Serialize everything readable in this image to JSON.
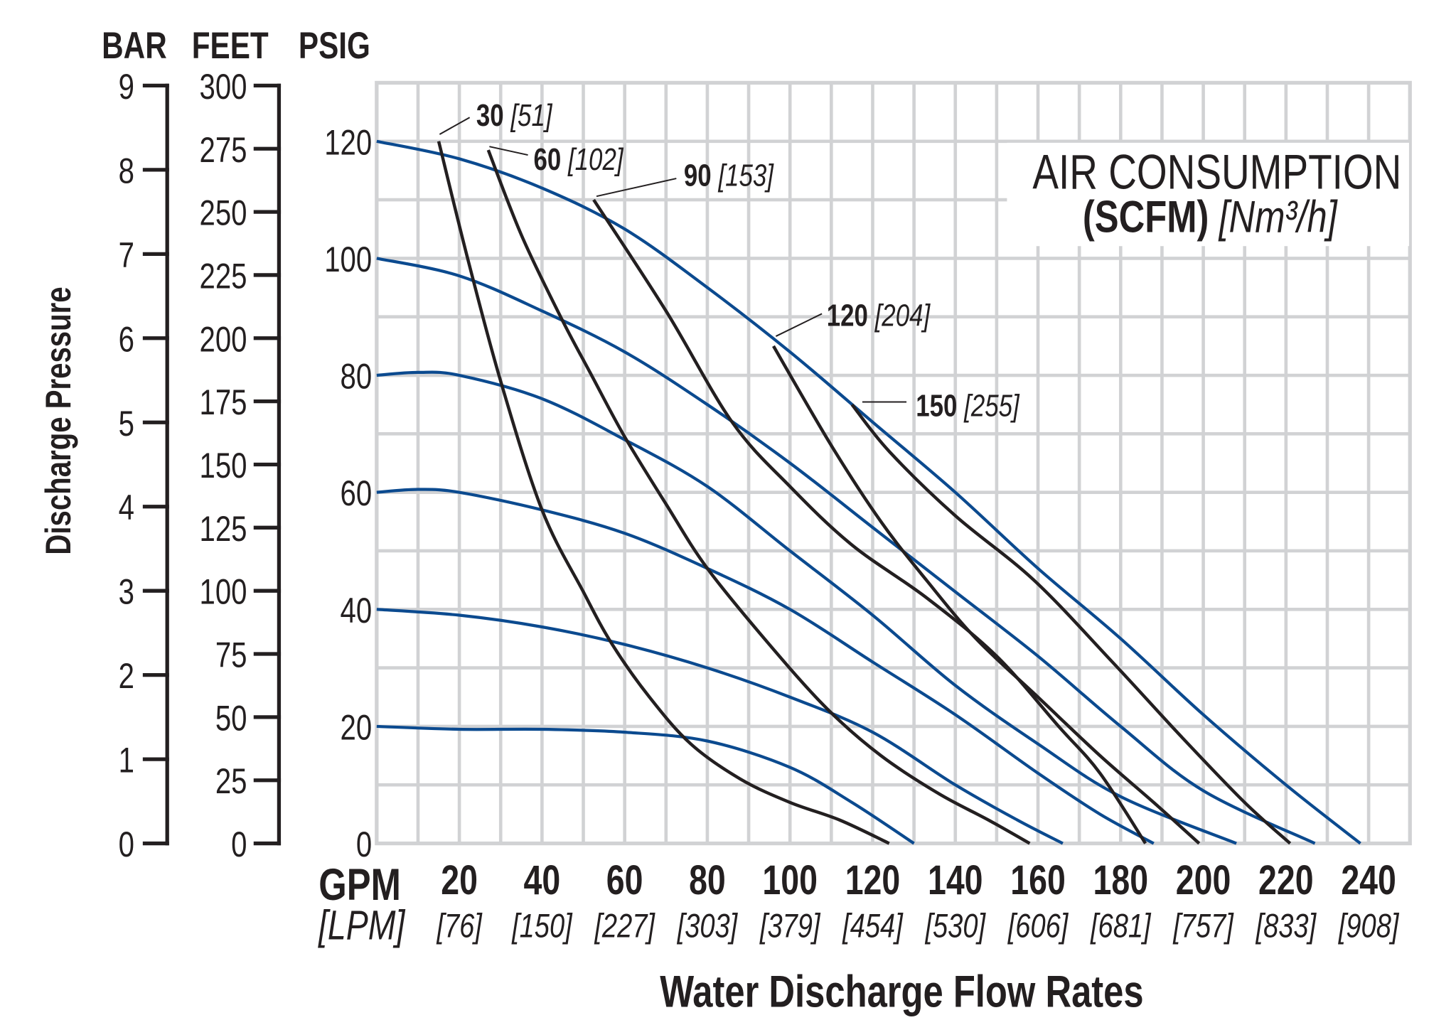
{
  "chart_data": {
    "type": "line",
    "title_box": {
      "line1": "AIR CONSUMPTION",
      "line2_bold": "(SCFM)",
      "line2_italic": "[Nm³/h]"
    },
    "xlabel": "Water Discharge Flow Rates",
    "x_unit_primary": "GPM",
    "x_unit_secondary": "[LPM]",
    "xlim": [
      0,
      250
    ],
    "x_ticks": [
      20,
      40,
      60,
      80,
      100,
      120,
      140,
      160,
      180,
      200,
      220,
      240
    ],
    "x_ticks_secondary": [
      "[76]",
      "[150]",
      "[227]",
      "[303]",
      "[379]",
      "[454]",
      "[530]",
      "[606]",
      "[681]",
      "[757]",
      "[833]",
      "[908]"
    ],
    "ylabel": "Discharge Pressure",
    "ylim": [
      0,
      130
    ],
    "y_axes": [
      {
        "unit": "BAR",
        "max": 9,
        "ticks": [
          0,
          1,
          2,
          3,
          4,
          5,
          6,
          7,
          8,
          9
        ]
      },
      {
        "unit": "FEET",
        "max": 300,
        "ticks": [
          0,
          25,
          50,
          75,
          100,
          125,
          150,
          175,
          200,
          225,
          250,
          275,
          300
        ]
      },
      {
        "unit": "PSIG",
        "ticks": [
          0,
          20,
          40,
          60,
          80,
          100,
          120
        ]
      }
    ],
    "grid": true,
    "colors": {
      "pressure_curves": "#0b4a8f",
      "air_curves": "#231f20",
      "grid": "#d1d2d4"
    },
    "pressure_curves": [
      {
        "start_psig": 120,
        "points": [
          [
            0,
            120
          ],
          [
            20,
            117
          ],
          [
            40,
            112
          ],
          [
            60,
            105
          ],
          [
            80,
            95
          ],
          [
            100,
            84
          ],
          [
            120,
            72
          ],
          [
            140,
            60
          ],
          [
            160,
            47
          ],
          [
            180,
            35
          ],
          [
            200,
            22
          ],
          [
            220,
            10
          ],
          [
            238,
            0
          ]
        ]
      },
      {
        "start_psig": 100,
        "points": [
          [
            0,
            100
          ],
          [
            20,
            97
          ],
          [
            40,
            91
          ],
          [
            60,
            84
          ],
          [
            80,
            75
          ],
          [
            100,
            65
          ],
          [
            120,
            54
          ],
          [
            140,
            43
          ],
          [
            160,
            32
          ],
          [
            180,
            20
          ],
          [
            200,
            9
          ],
          [
            227,
            0
          ]
        ]
      },
      {
        "start_psig": 80,
        "points": [
          [
            0,
            80
          ],
          [
            10,
            80.5
          ],
          [
            20,
            80
          ],
          [
            40,
            76
          ],
          [
            60,
            69
          ],
          [
            80,
            61
          ],
          [
            100,
            50
          ],
          [
            120,
            39
          ],
          [
            140,
            27
          ],
          [
            160,
            17
          ],
          [
            180,
            8
          ],
          [
            208,
            0
          ]
        ]
      },
      {
        "start_psig": 60,
        "points": [
          [
            0,
            60
          ],
          [
            10,
            60.5
          ],
          [
            20,
            60
          ],
          [
            40,
            57
          ],
          [
            60,
            53
          ],
          [
            80,
            47
          ],
          [
            100,
            40
          ],
          [
            120,
            31
          ],
          [
            140,
            22
          ],
          [
            160,
            12
          ],
          [
            175,
            5
          ],
          [
            188,
            0
          ]
        ]
      },
      {
        "start_psig": 40,
        "points": [
          [
            0,
            40
          ],
          [
            20,
            39
          ],
          [
            40,
            37
          ],
          [
            60,
            34
          ],
          [
            80,
            30
          ],
          [
            100,
            25
          ],
          [
            120,
            19
          ],
          [
            140,
            10
          ],
          [
            155,
            4
          ],
          [
            166,
            0
          ]
        ]
      },
      {
        "start_psig": 20,
        "points": [
          [
            0,
            20
          ],
          [
            20,
            19.5
          ],
          [
            40,
            19.5
          ],
          [
            60,
            19
          ],
          [
            80,
            17.5
          ],
          [
            100,
            13
          ],
          [
            115,
            7
          ],
          [
            130,
            0
          ]
        ]
      }
    ],
    "air_curves": [
      {
        "scfm": "30",
        "nm3h": "[51]",
        "points": [
          [
            15,
            120
          ],
          [
            22,
            100
          ],
          [
            30,
            79
          ],
          [
            40,
            57
          ],
          [
            50,
            43
          ],
          [
            57,
            34
          ],
          [
            66,
            25
          ],
          [
            76,
            17
          ],
          [
            88,
            11
          ],
          [
            100,
            7
          ],
          [
            112,
            4
          ],
          [
            124,
            0
          ]
        ]
      },
      {
        "scfm": "60",
        "nm3h": "[102]",
        "points": [
          [
            27,
            118.5
          ],
          [
            35,
            104
          ],
          [
            44.5,
            90
          ],
          [
            52,
            80
          ],
          [
            60,
            69.5
          ],
          [
            70,
            58
          ],
          [
            80,
            47
          ],
          [
            95,
            34
          ],
          [
            109,
            23
          ],
          [
            122,
            15
          ],
          [
            136,
            8.5
          ],
          [
            148,
            4
          ],
          [
            158,
            0
          ]
        ]
      },
      {
        "scfm": "90",
        "nm3h": "[153]",
        "points": [
          [
            52.5,
            110
          ],
          [
            70,
            91
          ],
          [
            86,
            72
          ],
          [
            100,
            61
          ],
          [
            115,
            51
          ],
          [
            133,
            42
          ],
          [
            150,
            32
          ],
          [
            165,
            20
          ],
          [
            175,
            12
          ],
          [
            186,
            0
          ]
        ]
      },
      {
        "scfm": "120",
        "nm3h": "[204]",
        "points": [
          [
            96,
            85
          ],
          [
            110,
            68
          ],
          [
            122,
            55
          ],
          [
            133,
            45
          ],
          [
            145,
            35
          ],
          [
            160,
            25
          ],
          [
            175,
            15
          ],
          [
            188,
            7
          ],
          [
            199,
            0
          ]
        ]
      },
      {
        "scfm": "150",
        "nm3h": "[255]",
        "points": [
          [
            115,
            75
          ],
          [
            124,
            67
          ],
          [
            140,
            56
          ],
          [
            159,
            45
          ],
          [
            178,
            31
          ],
          [
            195,
            18
          ],
          [
            210,
            7
          ],
          [
            221,
            0
          ]
        ]
      }
    ]
  }
}
